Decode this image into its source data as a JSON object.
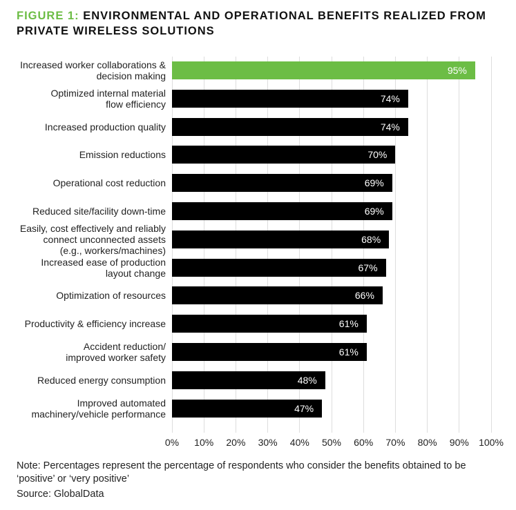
{
  "chart_data": {
    "type": "bar",
    "orientation": "horizontal",
    "title_prefix": "FIGURE 1:",
    "title": "ENVIRONMENTAL AND OPERATIONAL BENEFITS REALIZED FROM\nPRIVATE WIRELESS SOLUTIONS",
    "categories": [
      "Increased worker collaborations &\ndecision making",
      "Optimized internal material\nflow efficiency",
      "Increased production quality",
      "Emission reductions",
      "Operational cost reduction",
      "Reduced site/facility down-time",
      "Easily, cost effectively and reliably\nconnect unconnected assets\n(e.g., workers/machines)",
      "Increased ease of production\nlayout change",
      "Optimization of resources",
      "Productivity & efficiency increase",
      "Accident reduction/\nimproved worker safety",
      "Reduced energy consumption",
      "Improved automated\nmachinery/vehicle performance"
    ],
    "values": [
      95,
      74,
      74,
      70,
      69,
      69,
      68,
      67,
      66,
      61,
      61,
      48,
      47
    ],
    "value_labels": [
      "95%",
      "74%",
      "74%",
      "70%",
      "69%",
      "69%",
      "68%",
      "67%",
      "66%",
      "61%",
      "61%",
      "48%",
      "47%"
    ],
    "colors": [
      "#6cbd45",
      "#000000",
      "#000000",
      "#000000",
      "#000000",
      "#000000",
      "#000000",
      "#000000",
      "#000000",
      "#000000",
      "#000000",
      "#000000",
      "#000000"
    ],
    "xlim": [
      0,
      100
    ],
    "xticks": [
      {
        "value": 0,
        "label": "0%"
      },
      {
        "value": 10,
        "label": "10%"
      },
      {
        "value": 20,
        "label": "20%"
      },
      {
        "value": 30,
        "label": "30%"
      },
      {
        "value": 40,
        "label": "40%"
      },
      {
        "value": 50,
        "label": "50%"
      },
      {
        "value": 60,
        "label": "60%"
      },
      {
        "value": 70,
        "label": "70%"
      },
      {
        "value": 80,
        "label": "80%"
      },
      {
        "value": 90,
        "label": "90%"
      },
      {
        "value": 100,
        "label": "100%"
      }
    ],
    "grid": true,
    "note": "Note: Percentages represent the percentage of respondents who consider the benefits obtained to be\n‘positive’ or ‘very positive’",
    "source": "Source: GlobalData"
  }
}
